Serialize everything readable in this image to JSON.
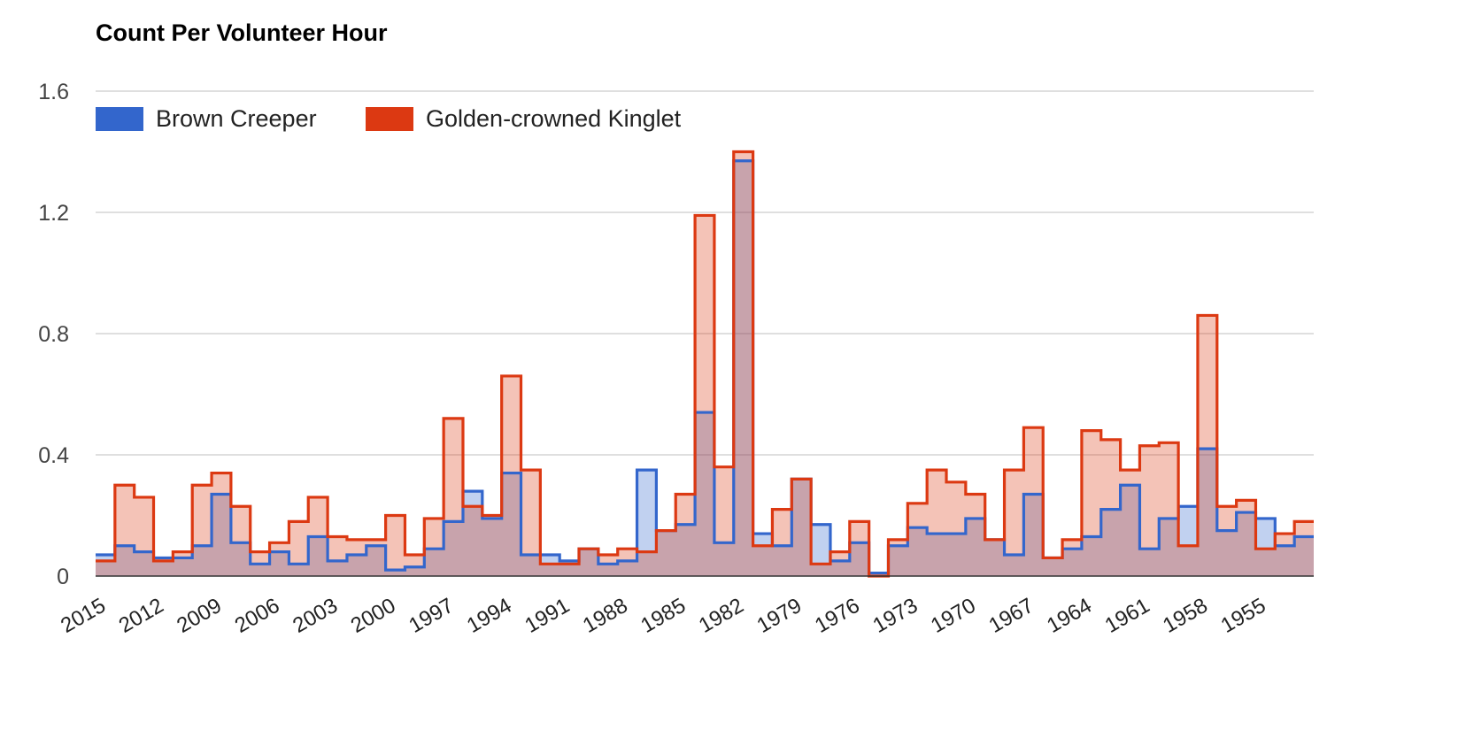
{
  "chart_data": {
    "type": "area",
    "title": "Count Per Volunteer Hour",
    "xlabel": "",
    "ylabel": "",
    "ylim": [
      0,
      1.6
    ],
    "yticks": [
      "0",
      "0.4",
      "0.8",
      "1.2",
      "1.6"
    ],
    "grid": true,
    "legend_position": "top-left",
    "x_tick_labels": [
      "2015",
      "2012",
      "2009",
      "2006",
      "2003",
      "2000",
      "1997",
      "1994",
      "1991",
      "1988",
      "1985",
      "1982",
      "1979",
      "1976",
      "1973",
      "1970",
      "1967",
      "1964",
      "1961",
      "1958",
      "1955"
    ],
    "x_tick_years": [
      2015,
      2012,
      2009,
      2006,
      2003,
      2000,
      1997,
      1994,
      1991,
      1988,
      1985,
      1982,
      1979,
      1976,
      1973,
      1970,
      1967,
      1964,
      1961,
      1958,
      1955
    ],
    "x_first_year": 2015,
    "x_last_year": 1953,
    "series": [
      {
        "name": "Brown Creeper",
        "color": "#3366cc",
        "values": [
          0.07,
          0.1,
          0.08,
          0.06,
          0.06,
          0.1,
          0.27,
          0.11,
          0.04,
          0.08,
          0.04,
          0.13,
          0.05,
          0.07,
          0.1,
          0.02,
          0.03,
          0.09,
          0.18,
          0.28,
          0.19,
          0.34,
          0.07,
          0.07,
          0.05,
          0.09,
          0.04,
          0.05,
          0.35,
          0.15,
          0.17,
          0.54,
          0.11,
          1.37,
          0.14,
          0.1,
          0.32,
          0.17,
          0.05,
          0.11,
          0.01,
          0.1,
          0.16,
          0.14,
          0.14,
          0.19,
          0.12,
          0.07,
          0.27,
          0.06,
          0.09,
          0.13,
          0.22,
          0.3,
          0.09,
          0.19,
          0.23,
          0.42,
          0.15,
          0.21,
          0.19,
          0.1,
          0.13
        ]
      },
      {
        "name": "Golden-crowned Kinglet",
        "color": "#dc3912",
        "values": [
          0.05,
          0.3,
          0.26,
          0.05,
          0.08,
          0.3,
          0.34,
          0.23,
          0.08,
          0.11,
          0.18,
          0.26,
          0.13,
          0.12,
          0.12,
          0.2,
          0.07,
          0.19,
          0.52,
          0.23,
          0.2,
          0.66,
          0.35,
          0.04,
          0.04,
          0.09,
          0.07,
          0.09,
          0.08,
          0.15,
          0.27,
          1.19,
          0.36,
          1.4,
          0.1,
          0.22,
          0.32,
          0.04,
          0.08,
          0.18,
          0.0,
          0.12,
          0.24,
          0.35,
          0.31,
          0.27,
          0.12,
          0.35,
          0.49,
          0.06,
          0.12,
          0.48,
          0.45,
          0.35,
          0.43,
          0.44,
          0.1,
          0.86,
          0.23,
          0.25,
          0.09,
          0.14,
          0.18
        ]
      }
    ]
  }
}
